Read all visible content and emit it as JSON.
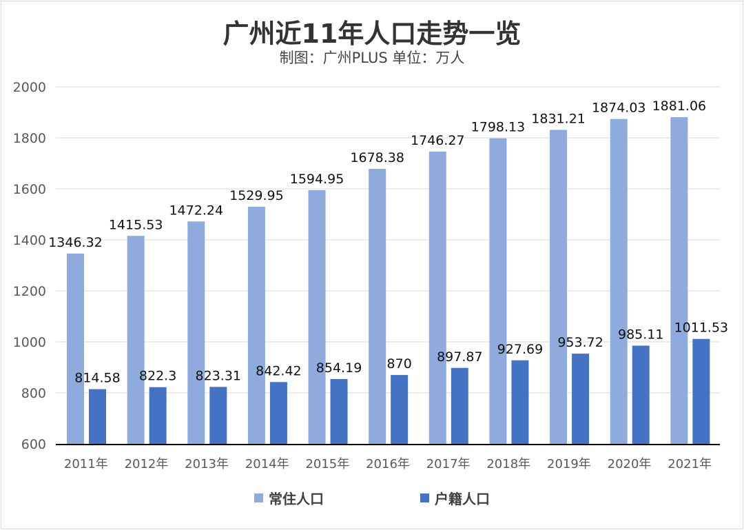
{
  "chart_data": {
    "type": "bar",
    "title": "广州近11年人口走势一览",
    "subtitle": "制图：广州PLUS  单位：万人",
    "categories": [
      "2011年",
      "2012年",
      "2013年",
      "2014年",
      "2015年",
      "2016年",
      "2017年",
      "2018年",
      "2019年",
      "2020年",
      "2021年"
    ],
    "series": [
      {
        "name": "常住人口",
        "color": "#8FAADC",
        "values": [
          1346.32,
          1415.53,
          1472.24,
          1529.95,
          1594.95,
          1678.38,
          1746.27,
          1798.13,
          1831.21,
          1874.03,
          1881.06
        ]
      },
      {
        "name": "户籍人口",
        "color": "#4472C4",
        "values": [
          814.58,
          822.3,
          823.31,
          842.42,
          854.19,
          870,
          897.87,
          927.69,
          953.72,
          985.11,
          1011.53
        ]
      }
    ],
    "ylim": [
      600,
      2000
    ],
    "yticks": [
      600,
      800,
      1000,
      1200,
      1400,
      1600,
      1800,
      2000
    ],
    "grid": true,
    "legend": "bottom"
  }
}
